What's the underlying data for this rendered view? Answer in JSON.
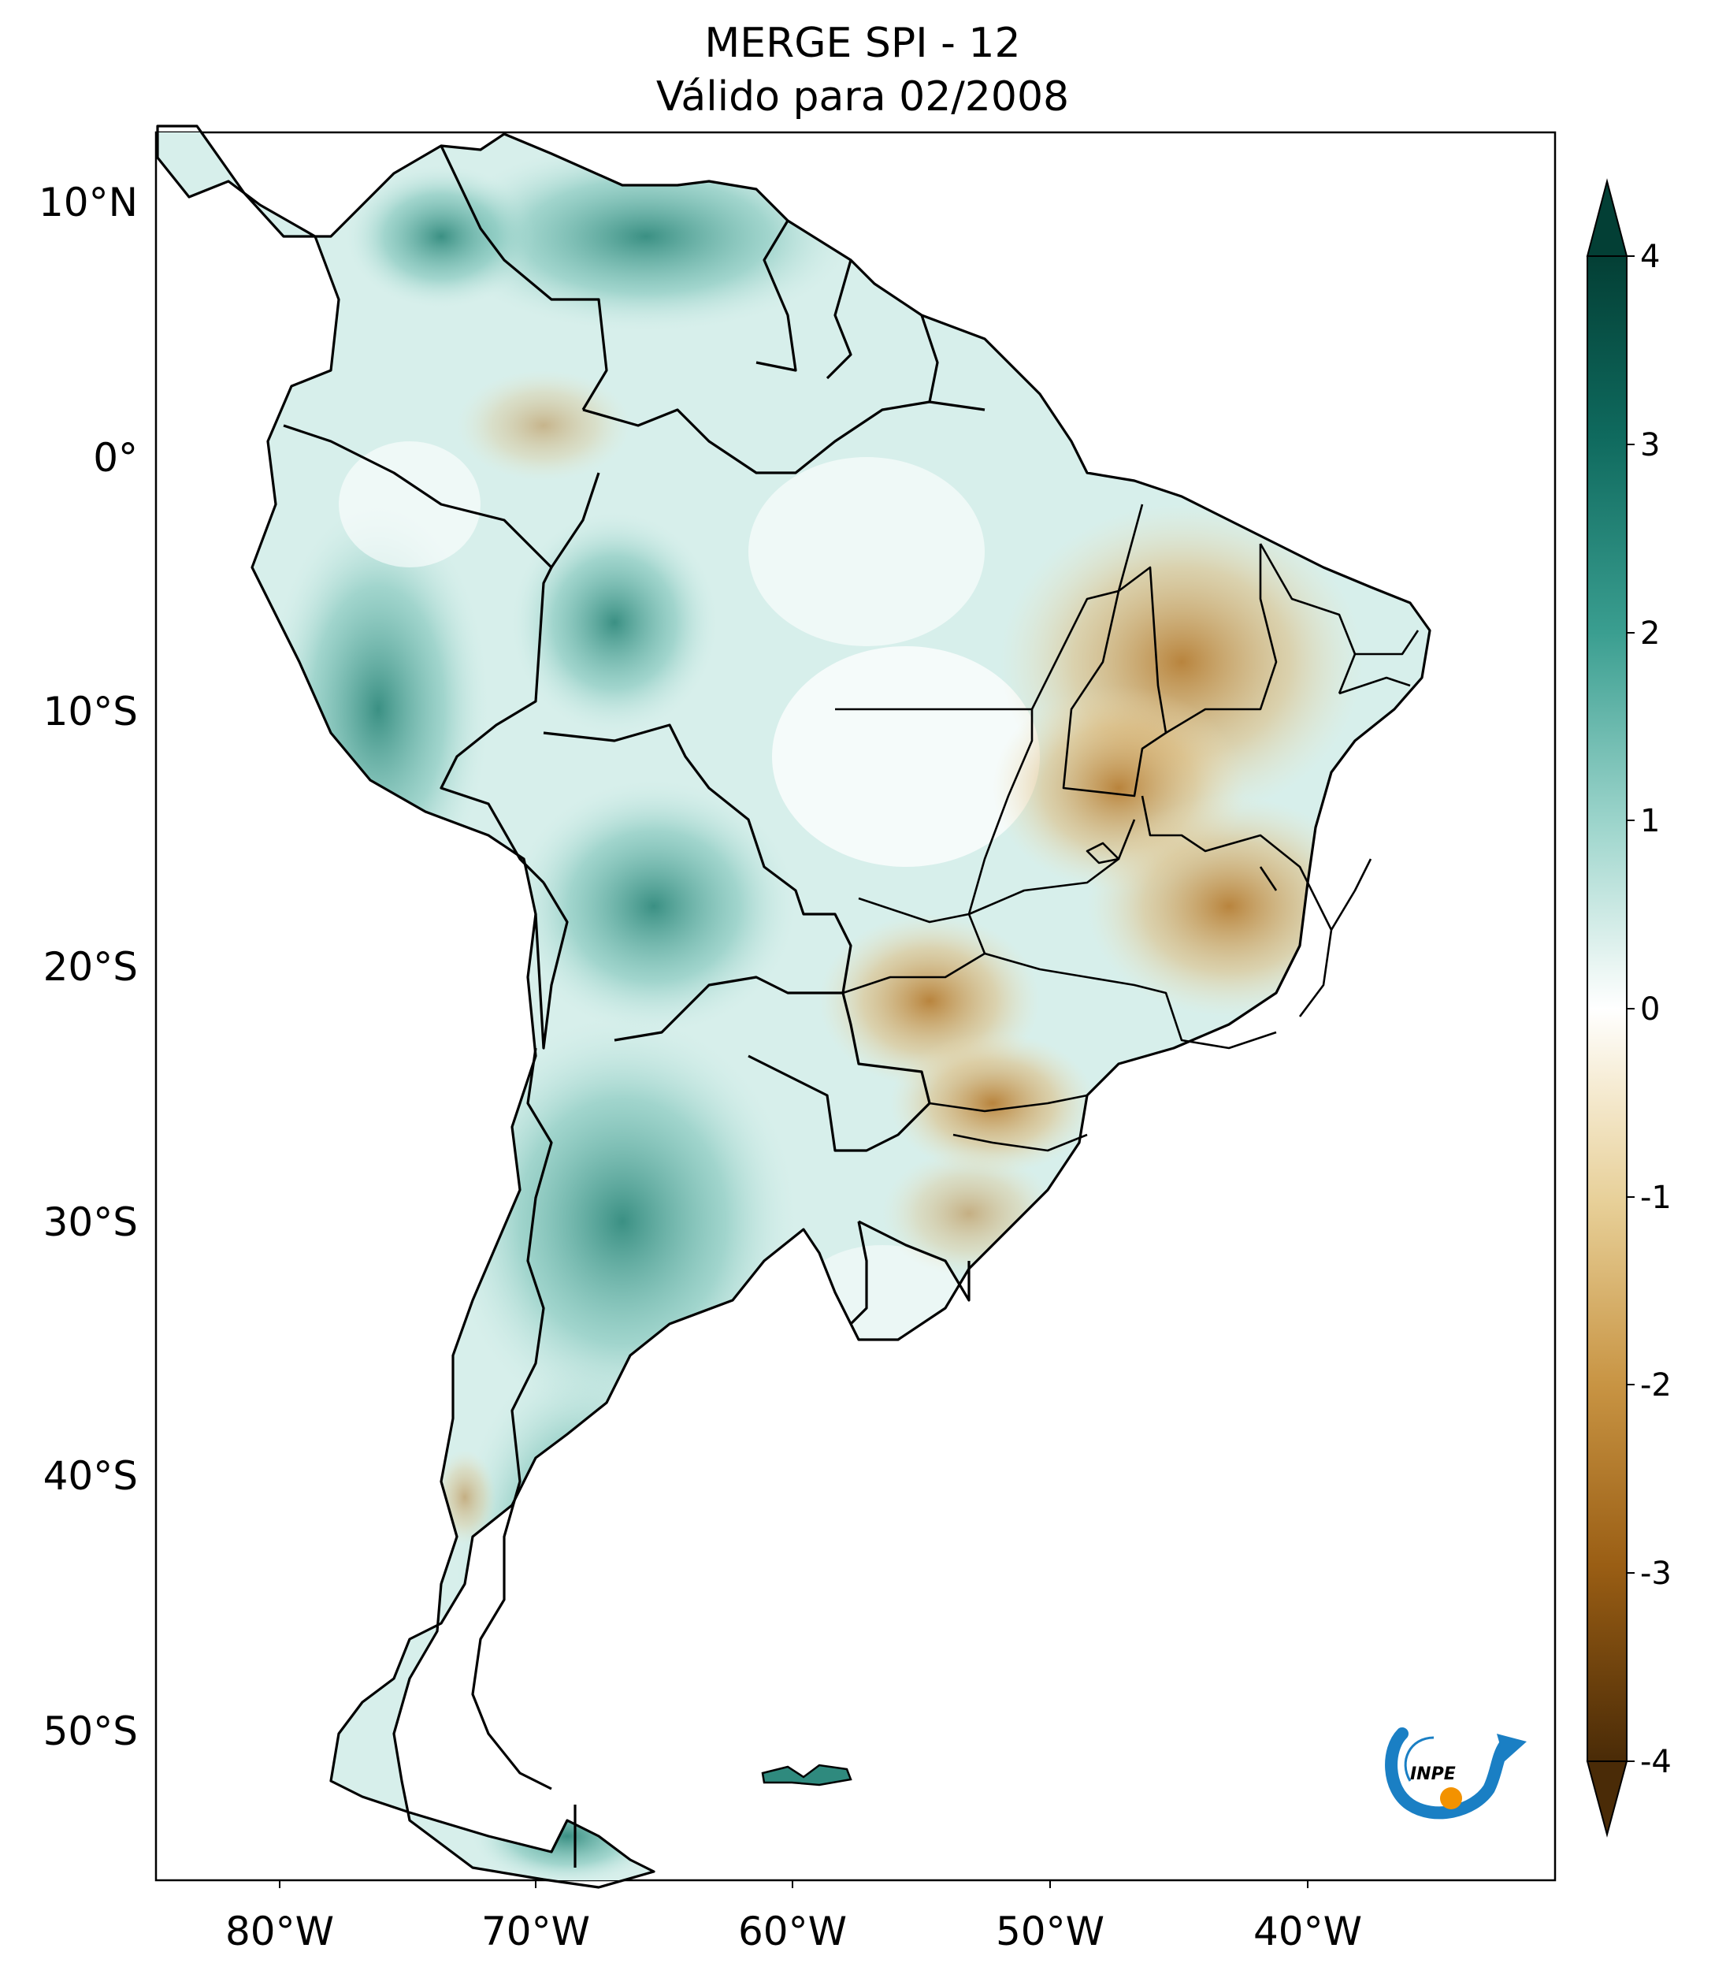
{
  "title": {
    "line1": "MERGE   SPI - 12",
    "line2": "Válido para 02/2008"
  },
  "map": {
    "region": "South America",
    "variable": "SPI - 12",
    "dataset": "MERGE",
    "lon_ticks": [
      "80°W",
      "70°W",
      "60°W",
      "50°W",
      "40°W"
    ],
    "lat_ticks": [
      "10°N",
      "0°",
      "10°S",
      "20°S",
      "30°S",
      "40°S",
      "50°S"
    ],
    "lon_values": [
      -80,
      -70,
      -60,
      -50,
      -40
    ],
    "lat_values": [
      10,
      0,
      -10,
      -20,
      -30,
      -40,
      -50
    ],
    "lon_range": [
      -85,
      -30
    ],
    "lat_range": [
      -56.5,
      13
    ]
  },
  "colorbar": {
    "ticks": [
      "4",
      "3",
      "2",
      "1",
      "0",
      "-1",
      "-2",
      "-3",
      "-4"
    ],
    "range": [
      -4,
      4
    ],
    "colors": {
      "max": "#033f35",
      "high": "#2b8a7e",
      "mid_high": "#9fd6cd",
      "zero": "#ffffff",
      "mid_low": "#e7cf97",
      "low": "#b97a24",
      "min": "#4a2b07"
    }
  },
  "logo": {
    "text": "INPE",
    "colors": {
      "arrow": "#1a7fc4",
      "sun": "#f39200"
    }
  }
}
